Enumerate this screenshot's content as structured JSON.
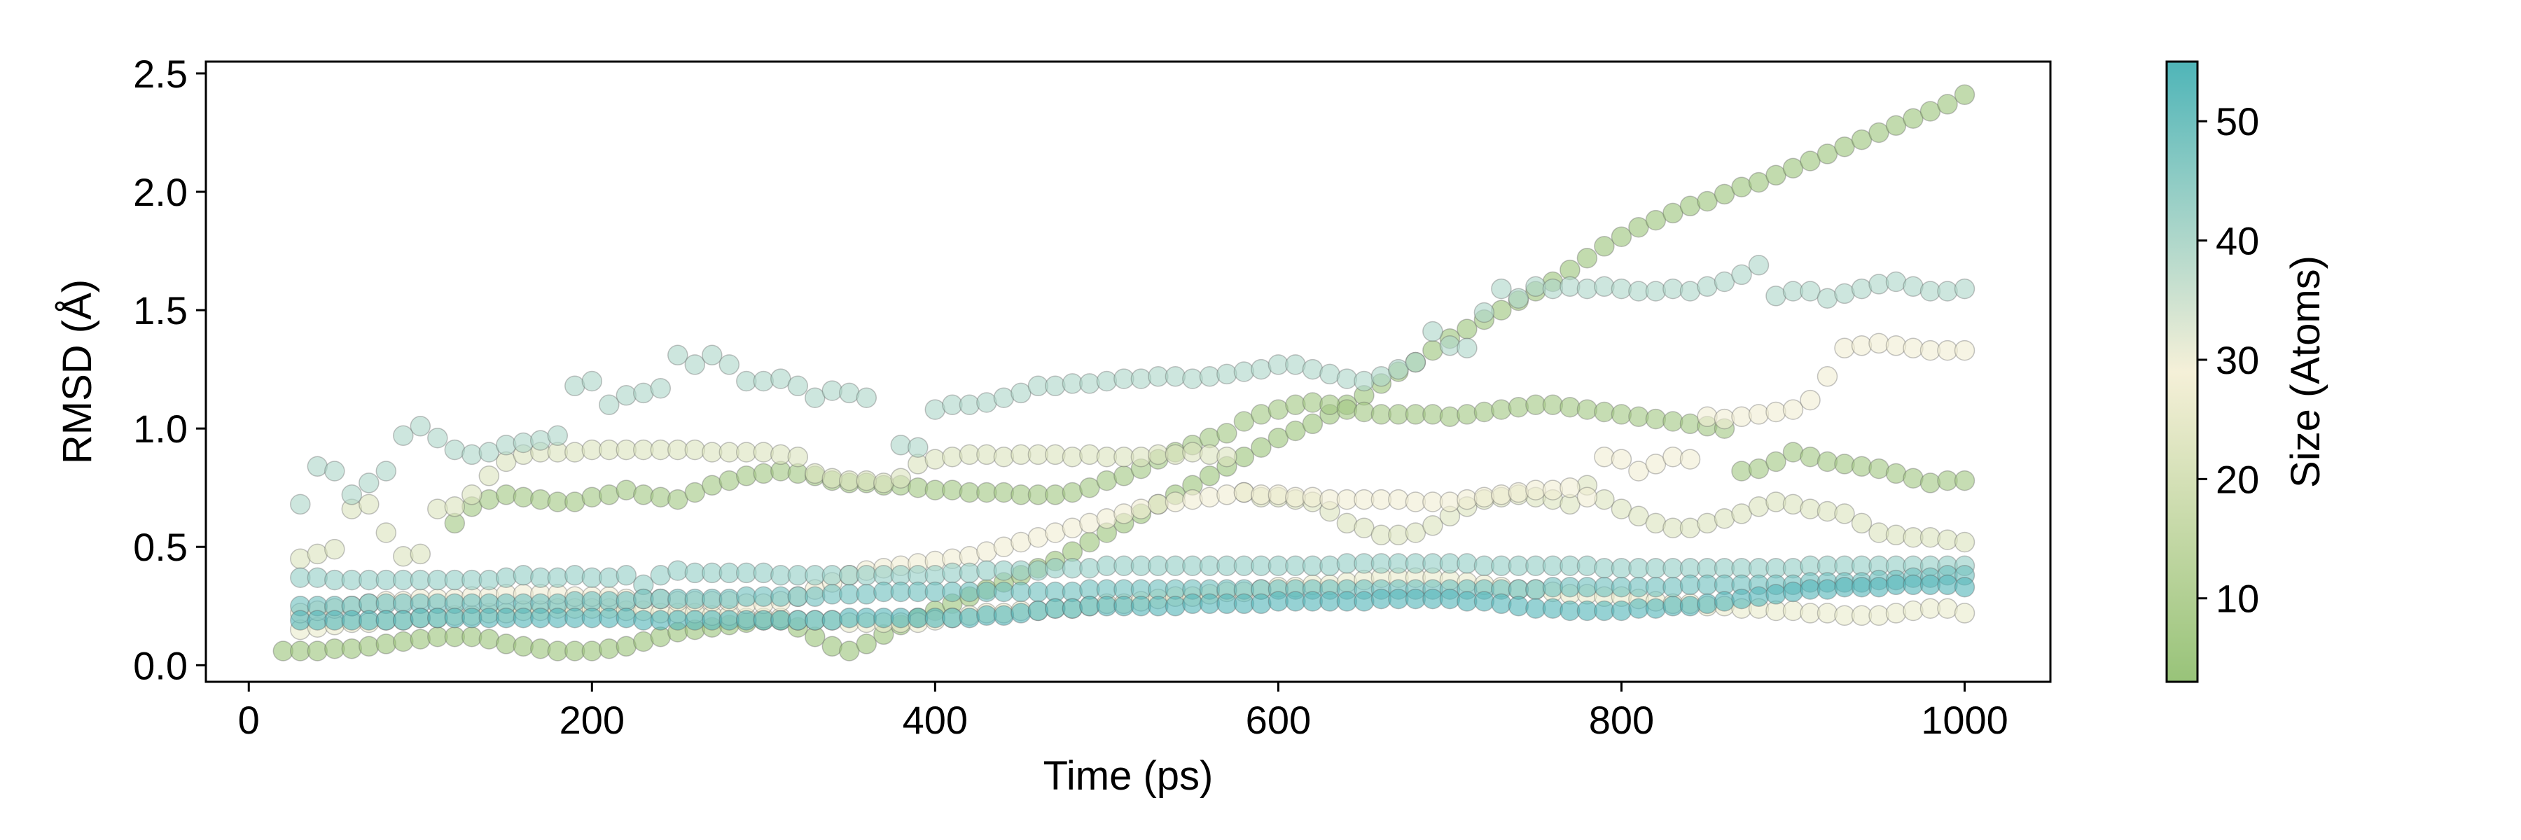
{
  "chart_data": {
    "type": "scatter",
    "xlabel": "Time (ps)",
    "ylabel": "RMSD (Å)",
    "xlim": [
      -25,
      1050
    ],
    "ylim": [
      -0.07,
      2.55
    ],
    "xticks": [
      0,
      200,
      400,
      600,
      800,
      1000
    ],
    "yticks": [
      0.0,
      0.5,
      1.0,
      1.5,
      2.0,
      2.5
    ],
    "ytick_labels": [
      "0.0",
      "0.5",
      "1.0",
      "1.5",
      "2.0",
      "2.5"
    ],
    "grid": false,
    "x": [
      20,
      30,
      40,
      50,
      60,
      70,
      80,
      90,
      100,
      110,
      120,
      130,
      140,
      150,
      160,
      170,
      180,
      190,
      200,
      210,
      220,
      230,
      240,
      250,
      260,
      270,
      280,
      290,
      300,
      310,
      320,
      330,
      340,
      350,
      360,
      370,
      380,
      390,
      400,
      410,
      420,
      430,
      440,
      450,
      460,
      470,
      480,
      490,
      500,
      510,
      520,
      530,
      540,
      550,
      560,
      570,
      580,
      590,
      600,
      610,
      620,
      630,
      640,
      650,
      660,
      670,
      680,
      690,
      700,
      710,
      720,
      730,
      740,
      750,
      760,
      770,
      780,
      790,
      800,
      810,
      820,
      830,
      840,
      850,
      860,
      870,
      880,
      890,
      900,
      910,
      920,
      930,
      940,
      950,
      960,
      970,
      980,
      990,
      1000
    ],
    "colorbar": {
      "label": "Size (Atoms)",
      "range": [
        3,
        55
      ],
      "ticks": [
        10,
        20,
        30,
        40,
        50
      ],
      "colors": [
        "#98c379",
        "#f5f0d8",
        "#4fb5b8"
      ]
    },
    "series": [
      {
        "size": 4,
        "values": [
          0.06,
          0.06,
          0.06,
          0.07,
          0.07,
          0.08,
          0.09,
          0.1,
          0.11,
          0.12,
          0.12,
          0.12,
          0.11,
          0.09,
          0.08,
          0.07,
          0.06,
          0.06,
          0.06,
          0.07,
          0.08,
          0.1,
          0.12,
          0.14,
          0.15,
          0.16,
          0.17,
          0.18,
          0.19,
          0.19,
          0.16,
          0.12,
          0.08,
          0.06,
          0.09,
          0.13,
          0.17,
          0.2,
          0.23,
          0.26,
          0.29,
          0.32,
          0.35,
          0.38,
          0.41,
          0.44,
          0.48,
          0.52,
          0.56,
          0.6,
          0.64,
          0.68,
          0.72,
          0.76,
          0.8,
          0.84,
          0.88,
          0.92,
          0.96,
          0.99,
          1.02,
          1.06,
          1.1,
          1.14,
          1.19,
          1.24,
          1.28,
          1.33,
          1.38,
          1.42,
          1.46,
          1.5,
          1.54,
          1.58,
          1.62,
          1.67,
          1.72,
          1.77,
          1.81,
          1.85,
          1.88,
          1.91,
          1.94,
          1.96,
          1.99,
          2.02,
          2.04,
          2.07,
          2.1,
          2.13,
          2.16,
          2.19,
          2.22,
          2.25,
          2.28,
          2.31,
          2.34,
          2.37,
          2.41
        ]
      },
      {
        "size": 6,
        "values": [
          null,
          null,
          null,
          null,
          null,
          null,
          null,
          null,
          null,
          null,
          0.6,
          0.67,
          0.7,
          0.72,
          0.71,
          0.7,
          0.69,
          0.69,
          0.71,
          0.72,
          0.74,
          0.72,
          0.71,
          0.7,
          0.73,
          0.76,
          0.78,
          0.8,
          0.81,
          0.82,
          0.81,
          0.8,
          0.78,
          0.77,
          0.77,
          0.76,
          0.76,
          0.75,
          0.74,
          0.74,
          0.73,
          0.73,
          0.73,
          0.72,
          0.72,
          0.72,
          0.73,
          0.75,
          0.78,
          0.8,
          0.83,
          0.87,
          0.9,
          0.93,
          0.96,
          0.98,
          1.03,
          1.06,
          1.08,
          1.1,
          1.11,
          1.1,
          1.08,
          1.07,
          1.06,
          1.06,
          1.06,
          1.06,
          1.05,
          1.06,
          1.07,
          1.08,
          1.09,
          1.1,
          1.1,
          1.09,
          1.08,
          1.07,
          1.06,
          1.05,
          1.04,
          1.03,
          1.02,
          1.01,
          1.0,
          0.82,
          0.83,
          0.86,
          0.9,
          0.88,
          0.86,
          0.85,
          0.84,
          0.83,
          0.81,
          0.79,
          0.77,
          0.78,
          0.78
        ]
      },
      {
        "size": 22,
        "values": [
          null,
          0.45,
          0.47,
          0.49,
          0.66,
          0.68,
          0.56,
          0.46,
          0.47,
          0.66,
          0.67,
          0.72,
          0.8,
          0.86,
          0.89,
          0.9,
          0.9,
          0.9,
          0.91,
          0.91,
          0.91,
          0.91,
          0.91,
          0.91,
          0.91,
          0.9,
          0.9,
          0.9,
          0.9,
          0.89,
          0.88,
          0.81,
          0.79,
          0.78,
          0.78,
          0.77,
          0.79,
          0.85,
          0.87,
          0.88,
          0.89,
          0.89,
          0.88,
          0.89,
          0.89,
          0.89,
          0.88,
          0.89,
          0.88,
          0.88,
          0.88,
          0.89,
          0.89,
          0.9,
          0.89,
          0.88,
          0.73,
          0.71,
          0.71,
          0.7,
          0.69,
          0.65,
          0.6,
          0.58,
          0.55,
          0.55,
          0.56,
          0.59,
          0.63,
          0.67,
          0.7,
          0.71,
          0.72,
          0.71,
          0.7,
          0.68,
          0.76,
          0.7,
          0.66,
          0.63,
          0.6,
          0.58,
          0.58,
          0.6,
          0.62,
          0.64,
          0.67,
          0.69,
          0.68,
          0.66,
          0.65,
          0.64,
          0.6,
          0.56,
          0.55,
          0.54,
          0.54,
          0.53,
          0.52
        ]
      },
      {
        "size": 26,
        "values": [
          null,
          0.15,
          0.16,
          0.17,
          0.18,
          0.18,
          0.19,
          0.19,
          0.2,
          0.2,
          0.21,
          0.21,
          0.22,
          0.22,
          0.23,
          0.23,
          0.24,
          0.24,
          0.24,
          0.24,
          0.23,
          0.23,
          0.22,
          0.22,
          0.22,
          0.21,
          0.21,
          0.2,
          0.2,
          0.2,
          0.19,
          0.19,
          0.19,
          0.18,
          0.18,
          0.18,
          0.18,
          0.18,
          0.19,
          0.2,
          0.21,
          0.22,
          0.22,
          0.23,
          0.23,
          0.24,
          0.24,
          0.25,
          0.26,
          0.26,
          0.27,
          0.28,
          0.29,
          0.29,
          0.3,
          0.31,
          0.31,
          0.32,
          0.33,
          0.33,
          0.34,
          0.34,
          0.35,
          0.36,
          0.37,
          0.37,
          0.37,
          0.37,
          0.36,
          0.35,
          0.34,
          0.33,
          0.32,
          0.32,
          0.31,
          0.3,
          0.3,
          0.29,
          0.29,
          0.28,
          0.27,
          0.26,
          0.26,
          0.25,
          0.25,
          0.24,
          0.24,
          0.23,
          0.23,
          0.22,
          0.22,
          0.21,
          0.21,
          0.21,
          0.22,
          0.23,
          0.24,
          0.24,
          0.22
        ]
      },
      {
        "size": 28,
        "values": [
          null,
          0.22,
          0.23,
          0.24,
          0.25,
          0.26,
          0.27,
          0.27,
          0.28,
          0.28,
          0.28,
          0.29,
          0.29,
          0.3,
          0.3,
          0.3,
          0.3,
          0.29,
          0.29,
          0.29,
          0.28,
          0.28,
          0.28,
          0.27,
          0.27,
          0.27,
          0.27,
          0.26,
          0.26,
          0.27,
          0.29,
          0.32,
          0.35,
          0.38,
          0.4,
          0.41,
          0.42,
          0.43,
          0.44,
          0.45,
          0.46,
          0.48,
          0.5,
          0.52,
          0.54,
          0.56,
          0.58,
          0.6,
          0.62,
          0.64,
          0.66,
          0.68,
          0.69,
          0.7,
          0.71,
          0.72,
          0.73,
          0.72,
          0.72,
          0.71,
          0.71,
          0.7,
          0.7,
          0.7,
          0.7,
          0.7,
          0.69,
          0.69,
          0.69,
          0.7,
          0.71,
          0.72,
          0.73,
          0.74,
          0.74,
          0.75,
          0.71,
          0.88,
          0.87,
          0.82,
          0.85,
          0.88,
          0.87,
          1.05,
          1.04,
          1.05,
          1.06,
          1.07,
          1.08,
          1.12,
          1.22,
          1.34,
          1.35,
          1.36,
          1.35,
          1.34,
          1.33,
          1.33,
          1.33
        ]
      },
      {
        "size": 40,
        "values": [
          null,
          0.68,
          0.84,
          0.82,
          0.72,
          0.77,
          0.82,
          0.97,
          1.01,
          0.96,
          0.91,
          0.89,
          0.9,
          0.93,
          0.94,
          0.95,
          0.97,
          1.18,
          1.2,
          1.1,
          1.14,
          1.15,
          1.17,
          1.31,
          1.27,
          1.31,
          1.27,
          1.2,
          1.2,
          1.21,
          1.18,
          1.13,
          1.16,
          1.15,
          1.13,
          null,
          0.93,
          0.92,
          1.08,
          1.1,
          1.1,
          1.11,
          1.13,
          1.15,
          1.18,
          1.18,
          1.19,
          1.19,
          1.2,
          1.21,
          1.21,
          1.22,
          1.22,
          1.21,
          1.22,
          1.23,
          1.24,
          1.25,
          1.27,
          1.27,
          1.25,
          1.23,
          1.21,
          1.2,
          1.22,
          1.25,
          1.28,
          1.41,
          1.35,
          1.34,
          1.49,
          1.59,
          1.55,
          1.6,
          1.59,
          1.6,
          1.59,
          1.6,
          1.59,
          1.58,
          1.58,
          1.59,
          1.58,
          1.6,
          1.62,
          1.65,
          1.69,
          1.56,
          1.58,
          1.58,
          1.55,
          1.57,
          1.59,
          1.61,
          1.62,
          1.6,
          1.58,
          1.58,
          1.59
        ]
      },
      {
        "size": 44,
        "values": [
          null,
          0.37,
          0.37,
          0.36,
          0.36,
          0.36,
          0.36,
          0.36,
          0.36,
          0.36,
          0.36,
          0.36,
          0.36,
          0.37,
          0.38,
          0.37,
          0.37,
          0.38,
          0.37,
          0.37,
          0.38,
          0.34,
          0.38,
          0.4,
          0.39,
          0.39,
          0.39,
          0.39,
          0.39,
          0.38,
          0.38,
          0.38,
          0.38,
          0.38,
          0.38,
          0.38,
          0.38,
          0.38,
          0.38,
          0.39,
          0.39,
          0.4,
          0.4,
          0.4,
          0.4,
          0.41,
          0.41,
          0.41,
          0.42,
          0.42,
          0.42,
          0.42,
          0.42,
          0.42,
          0.42,
          0.42,
          0.42,
          0.42,
          0.42,
          0.42,
          0.42,
          0.42,
          0.43,
          0.43,
          0.43,
          0.43,
          0.43,
          0.43,
          0.43,
          0.43,
          0.42,
          0.42,
          0.42,
          0.42,
          0.42,
          0.42,
          0.42,
          0.41,
          0.41,
          0.41,
          0.41,
          0.41,
          0.41,
          0.41,
          0.41,
          0.41,
          0.41,
          0.41,
          0.41,
          0.42,
          0.42,
          0.42,
          0.42,
          0.42,
          0.42,
          0.42,
          0.42,
          0.42,
          0.42
        ]
      },
      {
        "size": 50,
        "values": [
          null,
          0.25,
          0.25,
          0.25,
          0.25,
          0.26,
          0.26,
          0.26,
          0.26,
          0.26,
          0.26,
          0.26,
          0.26,
          0.26,
          0.26,
          0.26,
          0.26,
          0.27,
          0.27,
          0.27,
          0.27,
          0.28,
          0.28,
          0.28,
          0.28,
          0.28,
          0.28,
          0.29,
          0.29,
          0.29,
          0.29,
          0.29,
          0.3,
          0.3,
          0.3,
          0.31,
          0.31,
          0.31,
          0.31,
          0.31,
          0.31,
          0.31,
          0.31,
          0.31,
          0.31,
          0.31,
          0.31,
          0.32,
          0.32,
          0.32,
          0.32,
          0.32,
          0.32,
          0.32,
          0.32,
          0.32,
          0.32,
          0.32,
          0.32,
          0.32,
          0.32,
          0.32,
          0.32,
          0.32,
          0.32,
          0.32,
          0.32,
          0.32,
          0.32,
          0.32,
          0.32,
          0.32,
          0.32,
          0.32,
          0.33,
          0.33,
          0.33,
          0.33,
          0.33,
          0.33,
          0.33,
          0.33,
          0.34,
          0.34,
          0.34,
          0.34,
          0.34,
          0.34,
          0.34,
          0.35,
          0.35,
          0.35,
          0.35,
          0.36,
          0.36,
          0.37,
          0.37,
          0.38,
          0.38
        ]
      },
      {
        "size": 54,
        "values": [
          null,
          0.19,
          0.19,
          0.19,
          0.19,
          0.19,
          0.19,
          0.19,
          0.2,
          0.2,
          0.2,
          0.2,
          0.2,
          0.2,
          0.2,
          0.2,
          0.2,
          0.2,
          0.2,
          0.2,
          0.2,
          0.19,
          0.19,
          0.19,
          0.19,
          0.19,
          0.19,
          0.19,
          0.19,
          0.19,
          0.19,
          0.19,
          0.19,
          0.2,
          0.2,
          0.2,
          0.2,
          0.2,
          0.2,
          0.2,
          0.2,
          0.21,
          0.21,
          0.22,
          0.23,
          0.24,
          0.24,
          0.25,
          0.25,
          0.25,
          0.25,
          0.25,
          0.25,
          0.26,
          0.26,
          0.26,
          0.26,
          0.26,
          0.27,
          0.27,
          0.27,
          0.27,
          0.27,
          0.27,
          0.28,
          0.28,
          0.28,
          0.28,
          0.28,
          0.27,
          0.27,
          0.26,
          0.25,
          0.24,
          0.24,
          0.23,
          0.23,
          0.23,
          0.23,
          0.24,
          0.24,
          0.25,
          0.25,
          0.26,
          0.27,
          0.28,
          0.29,
          0.3,
          0.31,
          0.32,
          0.32,
          0.33,
          0.33,
          0.33,
          0.34,
          0.34,
          0.34,
          0.34,
          0.33
        ]
      }
    ]
  }
}
